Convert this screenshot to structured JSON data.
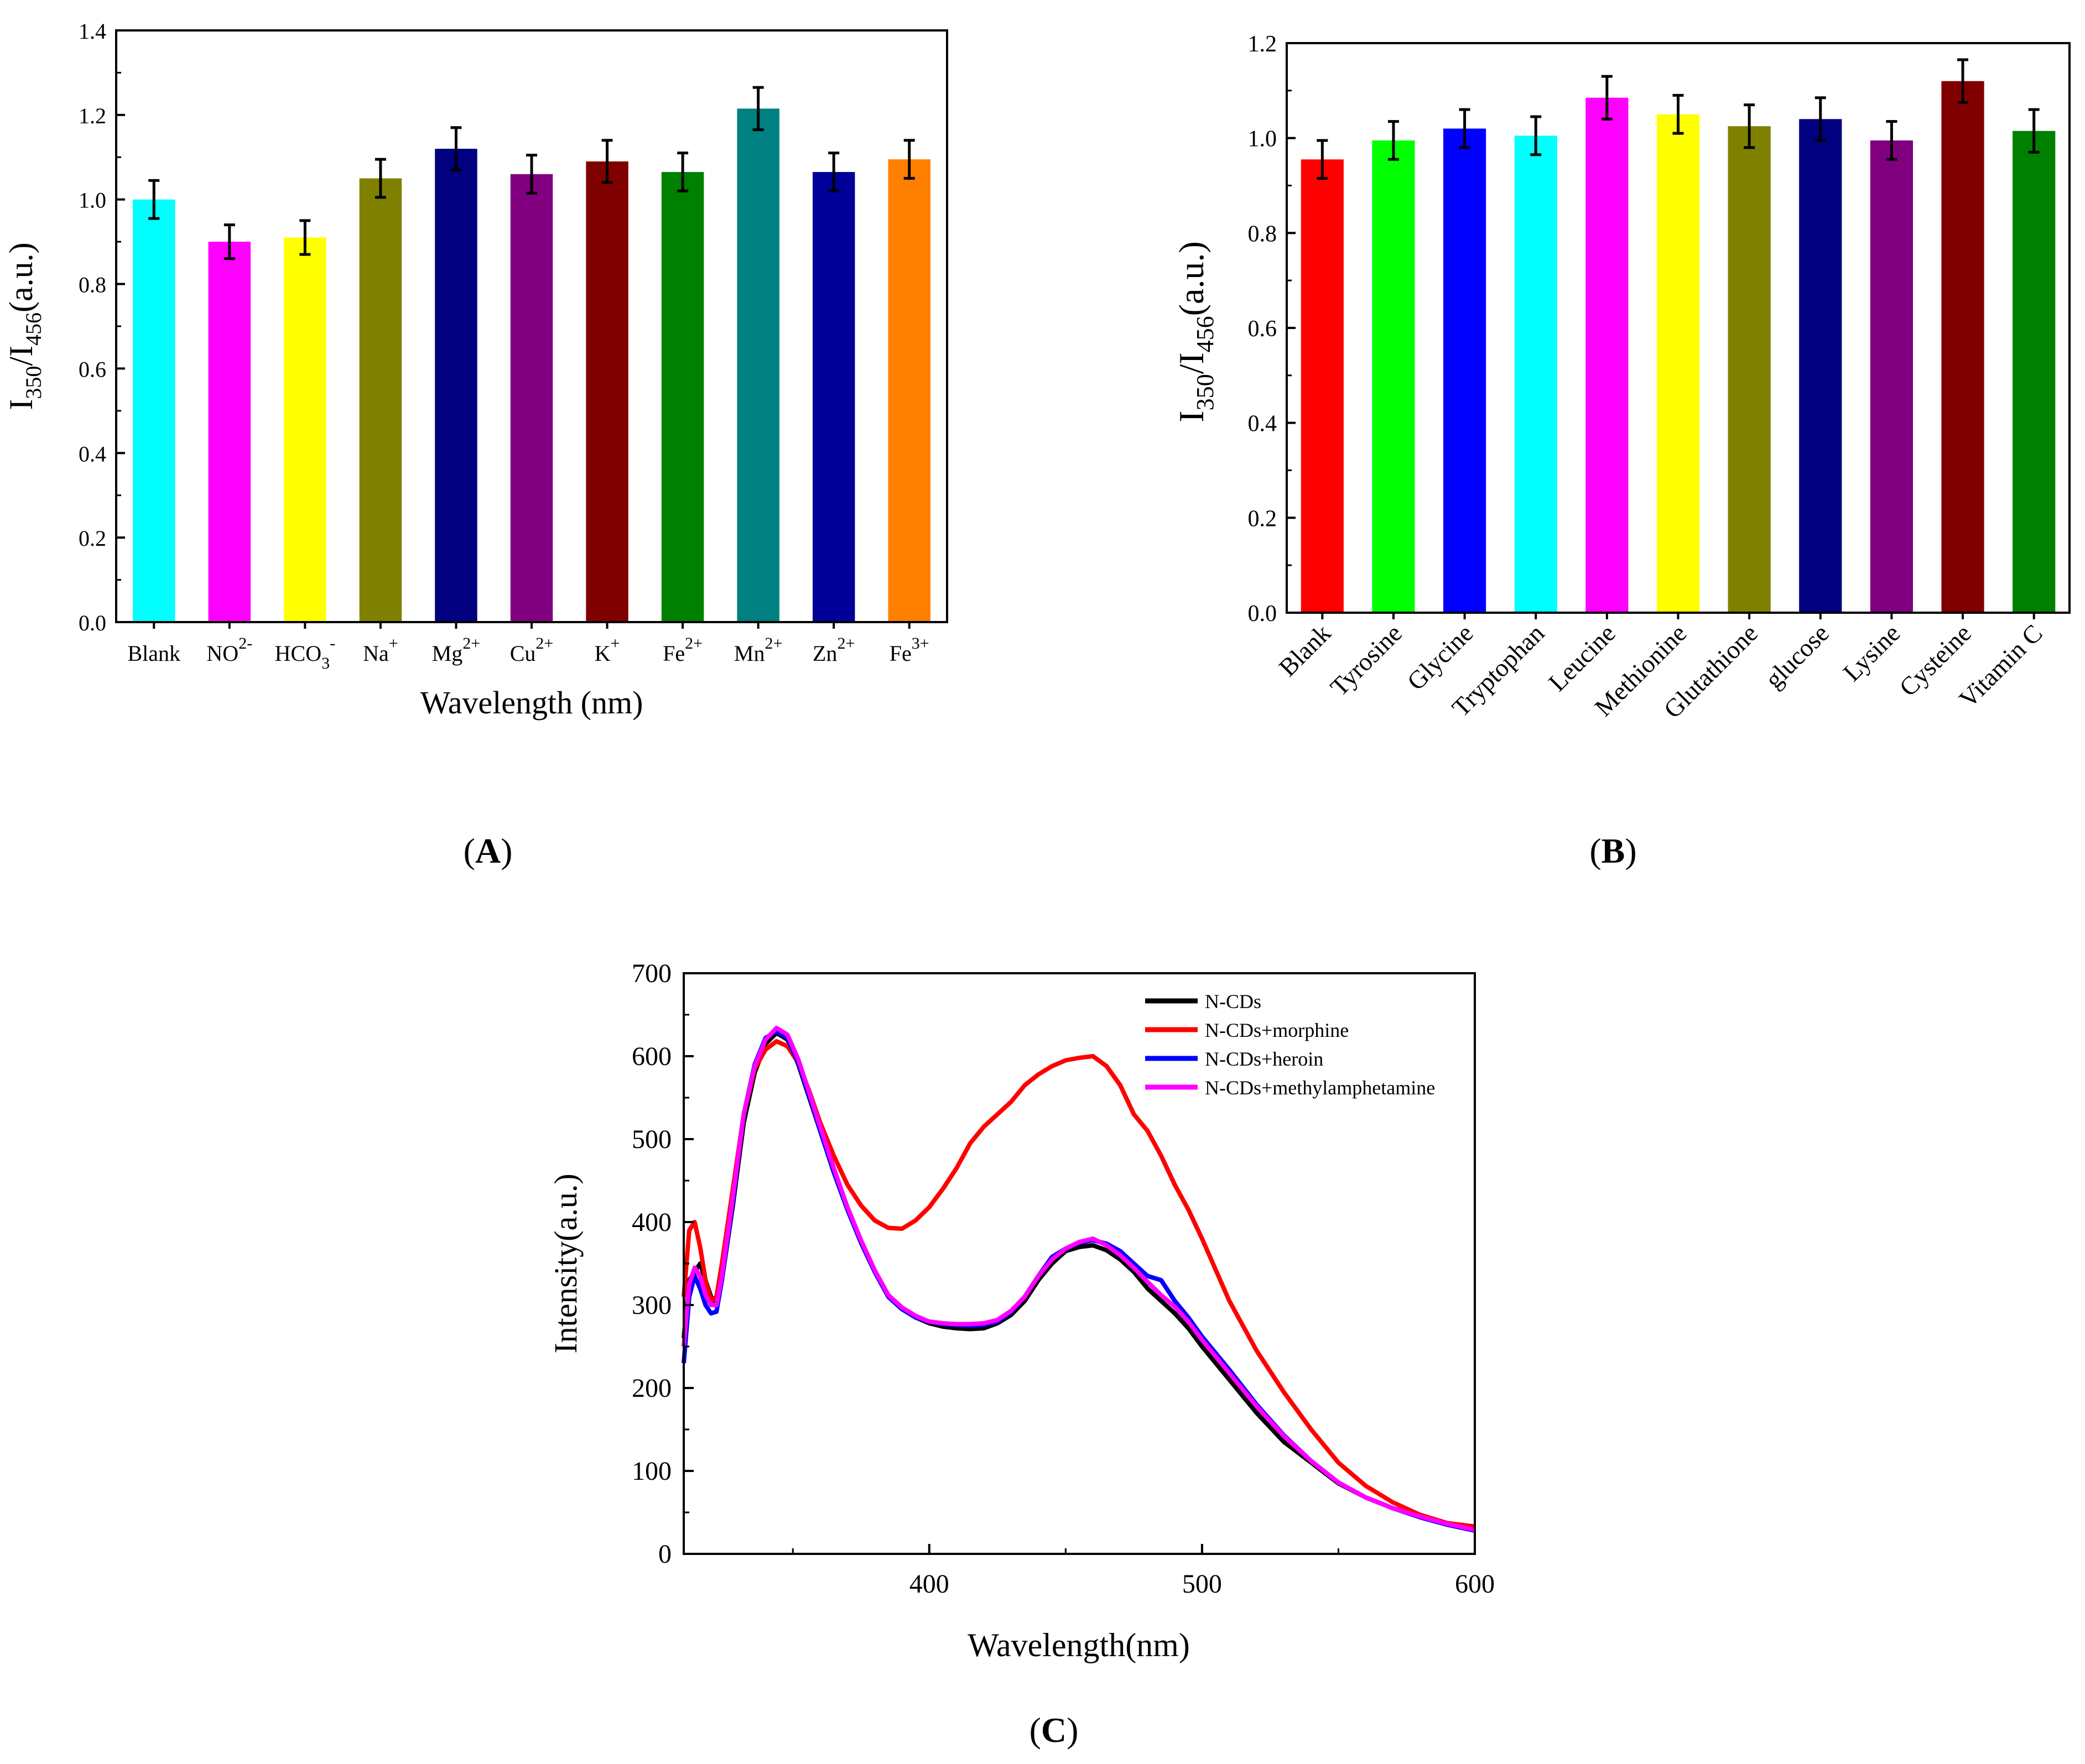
{
  "chart_data": [
    {
      "panel": "A",
      "panel_label": "A",
      "type": "bar",
      "title": "",
      "xlabel": "Wavelength (nm)",
      "ylabel_parts": {
        "main": "I",
        "sub1": "350",
        "slash": "/I",
        "sub2": "456",
        "unit": "(a.u.)"
      },
      "ylim": [
        0,
        1.4
      ],
      "yticks": [
        "0.0",
        "0.2",
        "0.4",
        "0.6",
        "0.8",
        "1.0",
        "1.2",
        "1.4"
      ],
      "categories": [
        {
          "base": "Blank",
          "sup": "",
          "sub": ""
        },
        {
          "base": "NO",
          "sup": "2-",
          "sub": ""
        },
        {
          "base": "HCO",
          "sub": "3",
          "sup": "-"
        },
        {
          "base": "Na",
          "sup": "+",
          "sub": ""
        },
        {
          "base": "Mg",
          "sup": "2+",
          "sub": ""
        },
        {
          "base": "Cu",
          "sup": "2+",
          "sub": ""
        },
        {
          "base": "K",
          "sup": "+",
          "sub": ""
        },
        {
          "base": "Fe",
          "sup": "2+",
          "sub": ""
        },
        {
          "base": "Mn",
          "sup": "2+",
          "sub": ""
        },
        {
          "base": "Zn",
          "sup": "2+",
          "sub": ""
        },
        {
          "base": "Fe",
          "sup": "3+",
          "sub": ""
        }
      ],
      "values": [
        1.0,
        0.9,
        0.91,
        1.05,
        1.12,
        1.06,
        1.09,
        1.065,
        1.215,
        1.065,
        1.095
      ],
      "errors": [
        0.045,
        0.04,
        0.04,
        0.045,
        0.05,
        0.045,
        0.05,
        0.045,
        0.05,
        0.045,
        0.045
      ],
      "colors": [
        "#00ffff",
        "#ff00ff",
        "#ffff00",
        "#808000",
        "#000080",
        "#800080",
        "#800000",
        "#008000",
        "#008080",
        "#000099",
        "#ff8000"
      ]
    },
    {
      "panel": "B",
      "panel_label": "B",
      "type": "bar",
      "title": "",
      "xlabel": "",
      "ylabel_parts": {
        "main": "I",
        "sub1": "350",
        "slash": "/I",
        "sub2": "456",
        "unit": "(a.u.)"
      },
      "ylim": [
        0,
        1.2
      ],
      "yticks": [
        "0.0",
        "0.2",
        "0.4",
        "0.6",
        "0.8",
        "1.0",
        "1.2"
      ],
      "categories": [
        "Blank",
        "Tyrosine",
        "Glycine",
        "Tryptophan",
        "Leucine",
        "Methionine",
        "Glutathione",
        "glucose",
        "Lysine",
        "Cysteine",
        "Vitamin C"
      ],
      "values": [
        0.955,
        0.995,
        1.02,
        1.005,
        1.085,
        1.05,
        1.025,
        1.04,
        0.995,
        1.12,
        1.015
      ],
      "errors": [
        0.04,
        0.04,
        0.04,
        0.04,
        0.045,
        0.04,
        0.045,
        0.045,
        0.04,
        0.045,
        0.045
      ],
      "colors": [
        "#ff0000",
        "#00ff00",
        "#0000ff",
        "#00ffff",
        "#ff00ff",
        "#ffff00",
        "#808000",
        "#000080",
        "#800080",
        "#800000",
        "#008000"
      ]
    },
    {
      "panel": "C",
      "panel_label": "C",
      "type": "line",
      "title": "",
      "xlabel": "Wavelength(nm)",
      "ylabel": "Intensity(a.u.)",
      "xlim": [
        310,
        600
      ],
      "ylim": [
        0,
        700
      ],
      "xticks": [
        "400",
        "500",
        "600"
      ],
      "yticks": [
        "0",
        "100",
        "200",
        "300",
        "400",
        "500",
        "600",
        "700"
      ],
      "legend_position": "top-right",
      "series": [
        {
          "name": "N-CDs",
          "color": "#000000",
          "x": [
            310,
            312,
            314,
            316,
            318,
            320,
            322,
            324,
            328,
            332,
            336,
            340,
            344,
            348,
            352,
            356,
            360,
            365,
            370,
            375,
            380,
            385,
            390,
            395,
            400,
            405,
            410,
            415,
            420,
            425,
            430,
            435,
            440,
            445,
            450,
            455,
            460,
            465,
            470,
            475,
            480,
            485,
            490,
            495,
            500,
            510,
            520,
            530,
            540,
            550,
            560,
            570,
            580,
            590,
            600
          ],
          "y": [
            260,
            330,
            340,
            350,
            330,
            310,
            300,
            330,
            420,
            520,
            580,
            615,
            628,
            620,
            590,
            550,
            510,
            460,
            415,
            375,
            340,
            310,
            295,
            285,
            278,
            274,
            272,
            271,
            272,
            278,
            288,
            305,
            330,
            350,
            365,
            370,
            372,
            366,
            355,
            340,
            320,
            305,
            290,
            272,
            250,
            210,
            170,
            135,
            110,
            85,
            68,
            55,
            45,
            36,
            30
          ]
        },
        {
          "name": "N-CDs+morphine",
          "color": "#ff0000",
          "x": [
            310,
            312,
            314,
            316,
            318,
            320,
            322,
            324,
            328,
            332,
            336,
            340,
            344,
            348,
            352,
            356,
            360,
            365,
            370,
            375,
            380,
            385,
            390,
            395,
            400,
            405,
            410,
            415,
            420,
            425,
            430,
            435,
            440,
            445,
            450,
            455,
            460,
            465,
            470,
            475,
            480,
            485,
            490,
            495,
            500,
            510,
            520,
            530,
            540,
            550,
            560,
            570,
            580,
            590,
            600
          ],
          "y": [
            310,
            390,
            400,
            370,
            330,
            305,
            310,
            350,
            440,
            530,
            585,
            608,
            618,
            612,
            592,
            558,
            520,
            480,
            445,
            420,
            402,
            393,
            392,
            402,
            418,
            440,
            465,
            495,
            515,
            530,
            545,
            565,
            578,
            588,
            595,
            598,
            600,
            588,
            565,
            530,
            510,
            480,
            445,
            415,
            380,
            305,
            245,
            195,
            150,
            110,
            82,
            62,
            47,
            37,
            33
          ]
        },
        {
          "name": "N-CDs+heroin",
          "color": "#0000ff",
          "x": [
            310,
            312,
            314,
            316,
            318,
            320,
            322,
            324,
            328,
            332,
            336,
            340,
            344,
            348,
            352,
            356,
            360,
            365,
            370,
            375,
            380,
            385,
            390,
            395,
            400,
            405,
            410,
            415,
            420,
            425,
            430,
            435,
            440,
            445,
            450,
            455,
            460,
            465,
            470,
            475,
            480,
            485,
            490,
            495,
            500,
            510,
            520,
            530,
            540,
            550,
            560,
            570,
            580,
            590,
            600
          ],
          "y": [
            230,
            310,
            335,
            320,
            300,
            290,
            292,
            330,
            425,
            530,
            590,
            622,
            630,
            622,
            592,
            552,
            510,
            460,
            415,
            375,
            340,
            310,
            295,
            285,
            280,
            277,
            276,
            275,
            276,
            280,
            292,
            310,
            335,
            358,
            368,
            375,
            378,
            374,
            365,
            350,
            335,
            330,
            305,
            285,
            262,
            222,
            180,
            143,
            112,
            86,
            68,
            55,
            44,
            35,
            28
          ]
        },
        {
          "name": "N-CDs+methylamphetamine",
          "color": "#ff00ff",
          "x": [
            310,
            312,
            314,
            316,
            318,
            320,
            322,
            324,
            328,
            332,
            336,
            340,
            344,
            348,
            352,
            356,
            360,
            365,
            370,
            375,
            380,
            385,
            390,
            395,
            400,
            405,
            410,
            415,
            420,
            425,
            430,
            435,
            440,
            445,
            450,
            455,
            460,
            465,
            470,
            475,
            480,
            485,
            490,
            495,
            500,
            510,
            520,
            530,
            540,
            550,
            560,
            570,
            580,
            590,
            600
          ],
          "y": [
            250,
            325,
            345,
            335,
            312,
            300,
            300,
            335,
            430,
            530,
            588,
            620,
            634,
            626,
            596,
            556,
            515,
            465,
            418,
            378,
            342,
            312,
            297,
            287,
            280,
            278,
            277,
            277,
            278,
            282,
            293,
            310,
            335,
            355,
            368,
            376,
            380,
            372,
            360,
            345,
            328,
            312,
            298,
            280,
            258,
            218,
            178,
            142,
            112,
            86,
            68,
            55,
            45,
            36,
            29
          ]
        }
      ]
    }
  ]
}
